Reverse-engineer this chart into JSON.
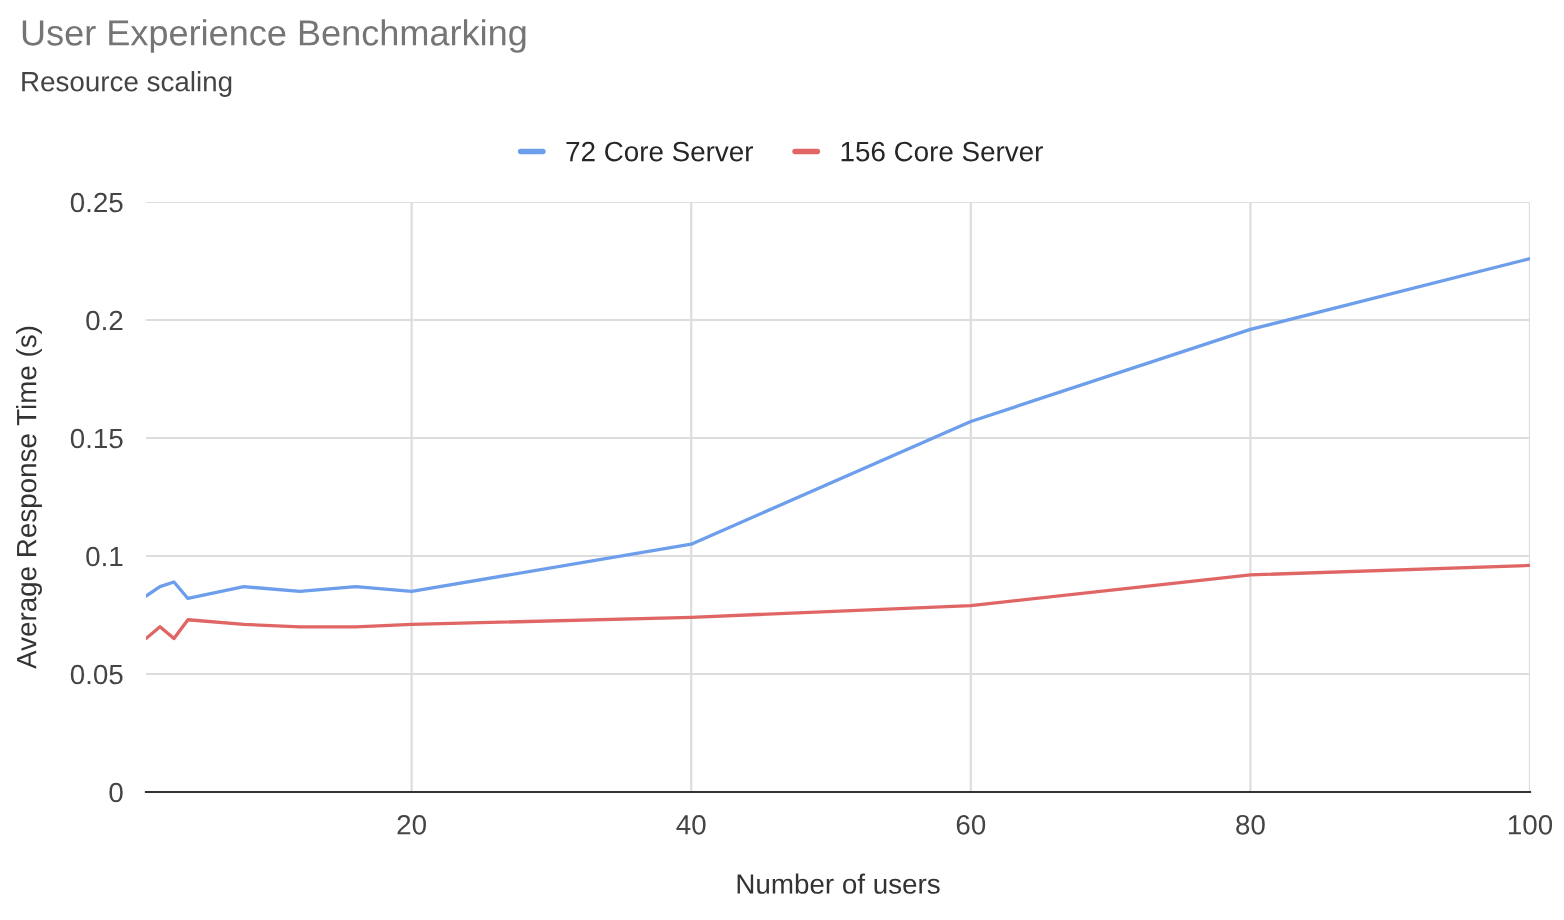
{
  "chart_data": {
    "type": "line",
    "title": "User Experience Benchmarking",
    "subtitle": "Resource scaling",
    "xlabel": "Number of users",
    "ylabel": "Average Response Time (s)",
    "x": [
      1,
      2,
      3,
      4,
      8,
      12,
      16,
      20,
      40,
      60,
      80,
      100
    ],
    "series": [
      {
        "name": "72 Core Server",
        "color": "#6d9eeb",
        "values": [
          0.083,
          0.087,
          0.089,
          0.082,
          0.087,
          0.085,
          0.087,
          0.085,
          0.105,
          0.157,
          0.196,
          0.226
        ]
      },
      {
        "name": "156 Core Server",
        "color": "#e06666",
        "values": [
          0.065,
          0.07,
          0.065,
          0.073,
          0.071,
          0.07,
          0.07,
          0.071,
          0.074,
          0.079,
          0.092,
          0.096
        ]
      }
    ],
    "xlim": [
      1,
      100
    ],
    "xticks": [
      20,
      40,
      60,
      80,
      100
    ],
    "ylim": [
      0,
      0.25
    ],
    "yticks": [
      0,
      0.05,
      0.1,
      0.15,
      0.2,
      0.25
    ],
    "grid": true,
    "legend": "top",
    "marker": "none",
    "line_style": "solid"
  }
}
